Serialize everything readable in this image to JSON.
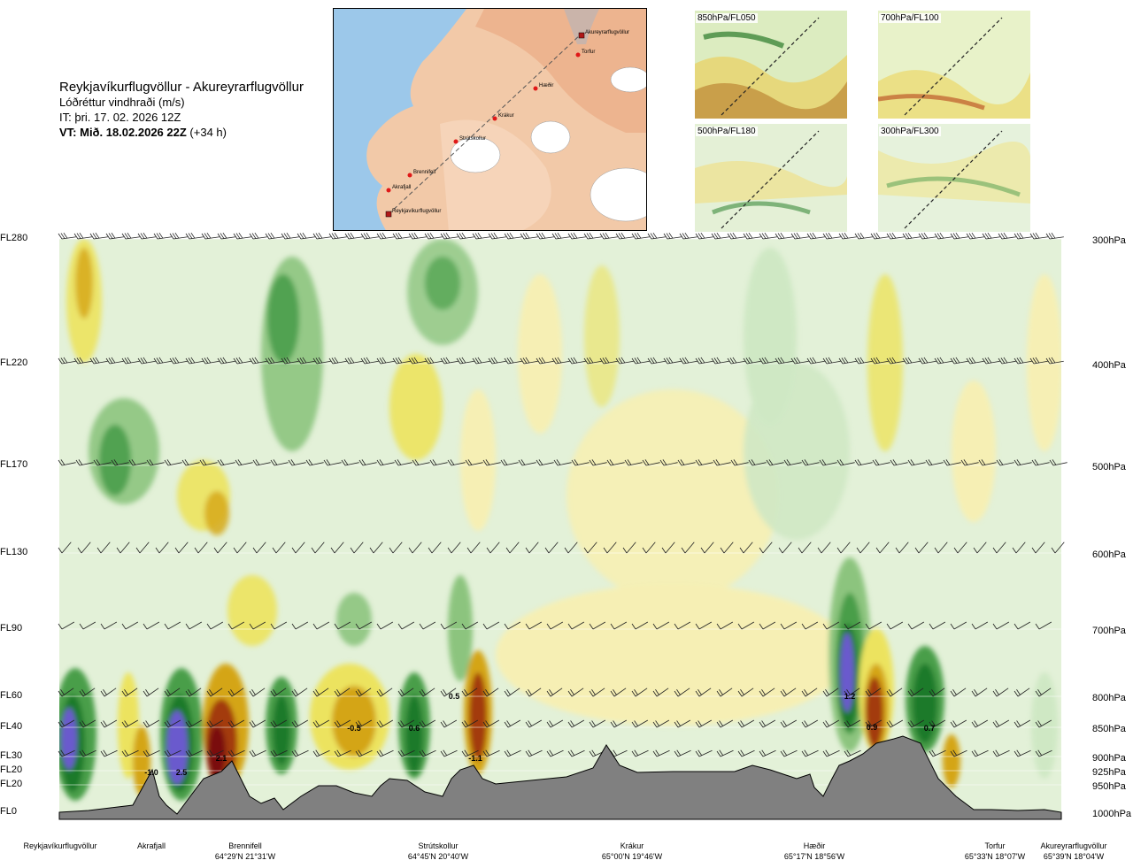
{
  "header": {
    "route": "Reykjavíkurflugvöllur - Akureyrarflugvöllur",
    "variable": "Lóðréttur vindhraði (m/s)",
    "issue_time": "IT: þri. 17. 02. 2026 12Z",
    "valid_time_bold": "VT: Mið. 18.02.2026 22Z",
    "valid_time_offset": "(+34 h)"
  },
  "route_map": {
    "waypoints": [
      "Akureyrarflugvöllur",
      "Torfur",
      "Hæðir",
      "Krákur",
      "Strútskollur",
      "Brennifell",
      "Akrafjall",
      "Reykjavíkurflugvöllur"
    ]
  },
  "mini_maps": [
    {
      "label": "850hPa/FL050"
    },
    {
      "label": "700hPa/FL100"
    },
    {
      "label": "500hPa/FL180"
    },
    {
      "label": "300hPa/FL300"
    }
  ],
  "chart_data": {
    "type": "heatmap",
    "title": "Lóðréttur vindhraði (m/s)",
    "flight_levels": [
      {
        "label": "FL280",
        "pressure": "300hPa"
      },
      {
        "label": "FL220",
        "pressure": "400hPa"
      },
      {
        "label": "FL170",
        "pressure": "500hPa"
      },
      {
        "label": "FL130",
        "pressure": "600hPa"
      },
      {
        "label": "FL90",
        "pressure": "700hPa"
      },
      {
        "label": "FL60",
        "pressure": "800hPa"
      },
      {
        "label": "FL40",
        "pressure": "850hPa"
      },
      {
        "label": "FL30",
        "pressure": "900hPa"
      },
      {
        "label": "FL20",
        "pressure": "925hPa"
      },
      {
        "label": "FL20",
        "pressure": "950hPa"
      },
      {
        "label": "FL0",
        "pressure": "1000hPa"
      }
    ],
    "x_waypoints": [
      {
        "name": "Reykjavíkurflugvöllur",
        "coord": ""
      },
      {
        "name": "Akrafjall",
        "coord": ""
      },
      {
        "name": "Brennifell",
        "coord": "64°29'N 21°31'W"
      },
      {
        "name": "Strútskollur",
        "coord": "64°45'N 20°40'W"
      },
      {
        "name": "Krákur",
        "coord": "65°00'N 19°46'W"
      },
      {
        "name": "Hæðir",
        "coord": "65°17'N 18°56'W"
      },
      {
        "name": "Torfur",
        "coord": "65°33'N 18°07'W"
      },
      {
        "name": "Akureyrarflugvöllur",
        "coord": "65°39'N 18°04'W"
      }
    ],
    "value_labels": [
      "-1.0",
      "2.5",
      "2.1",
      "-0.5",
      "0.6",
      "0.5",
      "-1.1",
      "1.2",
      "0.9",
      "0.7"
    ],
    "colors": {
      "strong_up": "#6a5acd",
      "up3": "#1a7a2a",
      "up2": "#4a9e4a",
      "up1": "#8cc47e",
      "up0": "#cfe8c4",
      "neutral": "#f4f9ec",
      "down0": "#f6efb4",
      "down1": "#ece35e",
      "down2": "#d4a514",
      "down3": "#a33a0e",
      "strong_down": "#7a1010",
      "terrain": "#808080"
    }
  }
}
